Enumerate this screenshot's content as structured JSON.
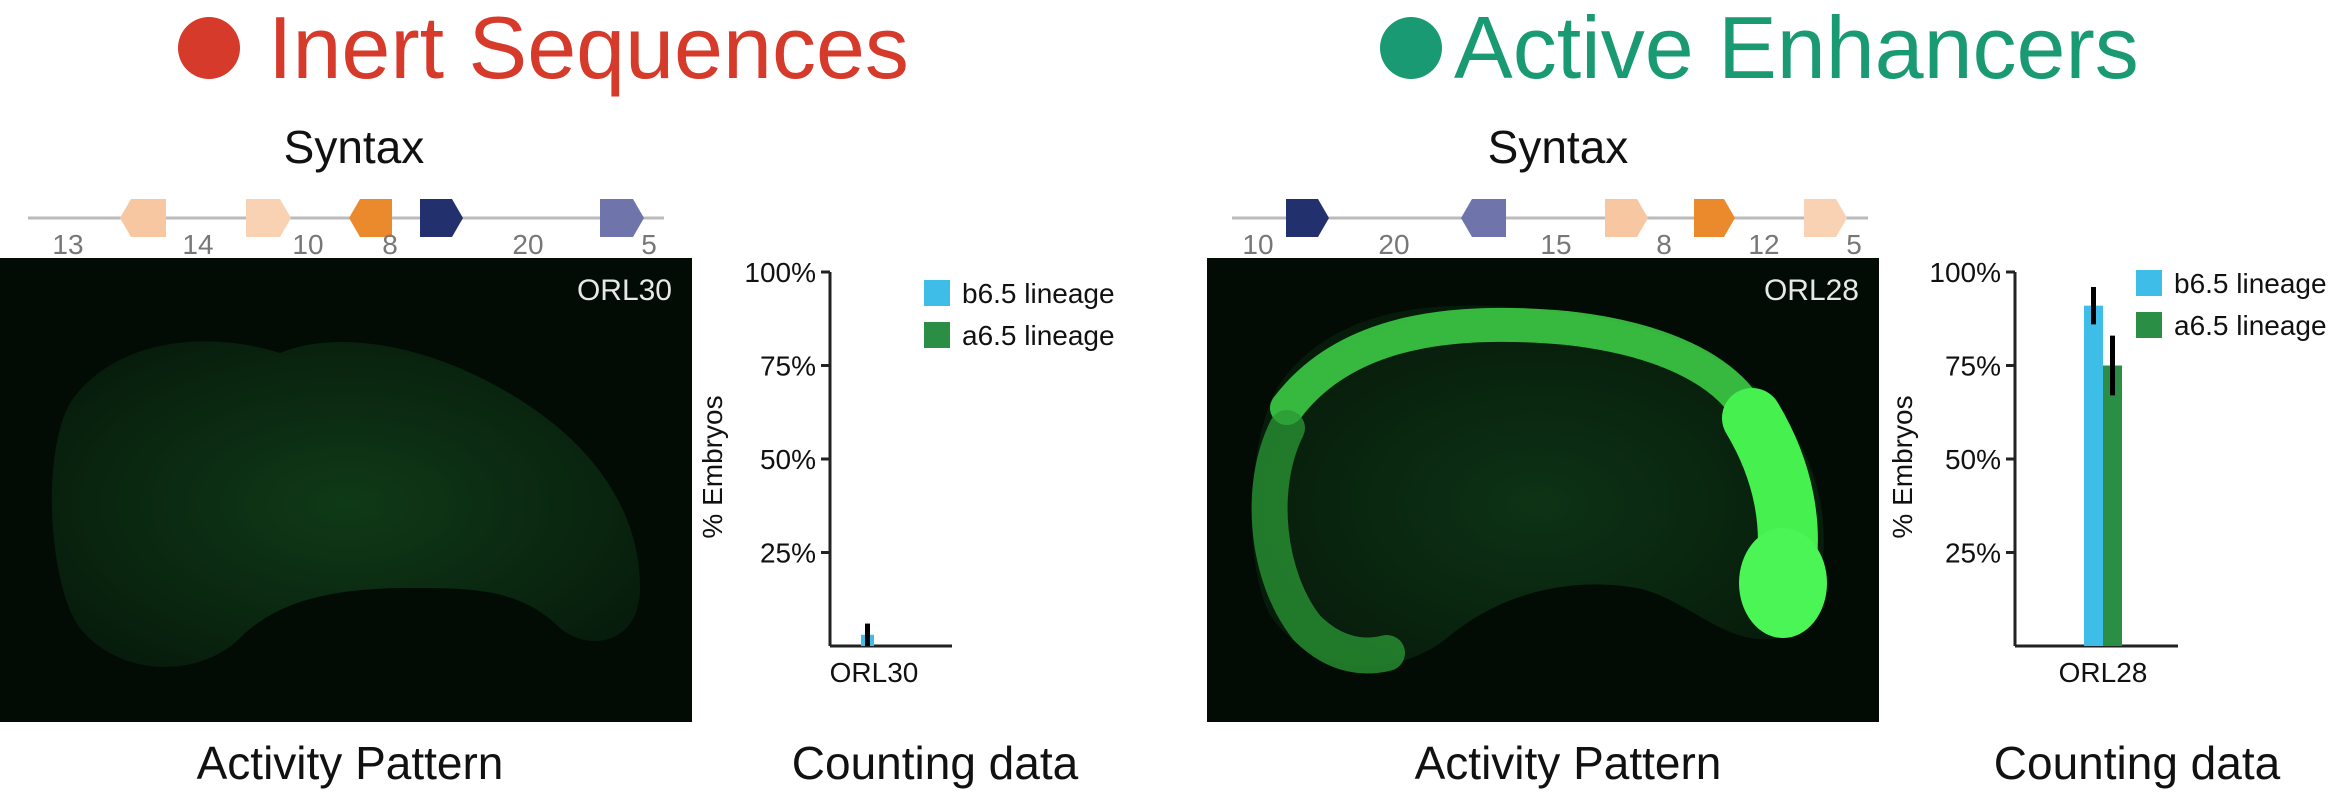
{
  "colors": {
    "inert": "#d63a2a",
    "active": "#1a9a73",
    "b65": "#3dbde8",
    "a65": "#2a8f45",
    "motif_light_orange": "#f6c7a0",
    "motif_pale_orange": "#f8d2b2",
    "motif_orange": "#eb8a2d",
    "motif_navy": "#23306e",
    "motif_lavender": "#6f75ab"
  },
  "left": {
    "heading": "Inert Sequences",
    "syntax_title": "Syntax",
    "syntax": {
      "spacers": [
        "13",
        "14",
        "10",
        "8",
        "20",
        "5"
      ],
      "motifs": [
        {
          "icon": "light-orange-motif",
          "color": "motif_light_orange",
          "dir": "left"
        },
        {
          "icon": "pale-orange-motif",
          "color": "motif_pale_orange",
          "dir": "right"
        },
        {
          "icon": "orange-motif",
          "color": "motif_orange",
          "dir": "left"
        },
        {
          "icon": "navy-motif",
          "color": "motif_navy",
          "dir": "right"
        },
        {
          "icon": "lavender-motif",
          "color": "motif_lavender",
          "dir": "right"
        }
      ]
    },
    "image_label": "ORL30",
    "image_caption": "Activity Pattern",
    "chart_caption": "Counting data"
  },
  "right": {
    "heading": "Active Enhancers",
    "syntax_title": "Syntax",
    "syntax": {
      "spacers": [
        "10",
        "20",
        "15",
        "8",
        "12",
        "5"
      ],
      "motifs": [
        {
          "icon": "navy-motif",
          "color": "motif_navy",
          "dir": "right"
        },
        {
          "icon": "lavender-motif",
          "color": "motif_lavender",
          "dir": "left"
        },
        {
          "icon": "light-orange-motif",
          "color": "motif_light_orange",
          "dir": "right"
        },
        {
          "icon": "orange-motif",
          "color": "motif_orange",
          "dir": "right"
        },
        {
          "icon": "pale-orange-motif",
          "color": "motif_pale_orange",
          "dir": "right"
        }
      ]
    },
    "image_label": "ORL28",
    "image_caption": "Activity Pattern",
    "chart_caption": "Counting data"
  },
  "chart_data": [
    {
      "type": "bar",
      "categories": [
        "ORL30"
      ],
      "series": [
        {
          "name": "b6.5 lineage",
          "values": [
            3
          ],
          "error": [
            3
          ]
        },
        {
          "name": "a6.5 lineage",
          "values": [
            0
          ],
          "error": [
            0
          ]
        }
      ],
      "ylabel": "% Embryos",
      "yticks": [
        "25%",
        "50%",
        "75%",
        "100%"
      ],
      "ylim": [
        0,
        100
      ],
      "legend": "top-right"
    },
    {
      "type": "bar",
      "categories": [
        "ORL28"
      ],
      "series": [
        {
          "name": "b6.5 lineage",
          "values": [
            91
          ],
          "error": [
            5
          ]
        },
        {
          "name": "a6.5 lineage",
          "values": [
            75
          ],
          "error": [
            8
          ]
        }
      ],
      "ylabel": "% Embryos",
      "yticks": [
        "25%",
        "50%",
        "75%",
        "100%"
      ],
      "ylim": [
        0,
        100
      ],
      "legend": "top-right"
    }
  ]
}
